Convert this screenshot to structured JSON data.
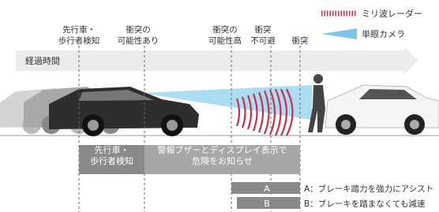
{
  "legend": {
    "radar": "ミリ波レーダー",
    "camera": "単眼カメラ"
  },
  "stages": [
    {
      "lines": [
        "先行車・",
        "歩行者検知"
      ]
    },
    {
      "lines": [
        "衝突の",
        "可能性あり"
      ]
    },
    {
      "lines": [
        "衝突の",
        "可能性高"
      ]
    },
    {
      "lines": [
        "衝突",
        "不可避"
      ]
    },
    {
      "lines": [
        "衝突"
      ]
    }
  ],
  "timeline": "経過時間",
  "boxes": [
    {
      "lines": [
        "先行車・",
        "歩行者検知"
      ]
    },
    {
      "lines": [
        "警報ブザーとディスプレイ表示で",
        "危険をお知らせ"
      ]
    }
  ],
  "braking": [
    {
      "tag": "A",
      "text": "A：ブレーキ踏力を強力にアシスト"
    },
    {
      "tag": "B",
      "text": "B：ブレーキを踏まなくても減速"
    }
  ]
}
